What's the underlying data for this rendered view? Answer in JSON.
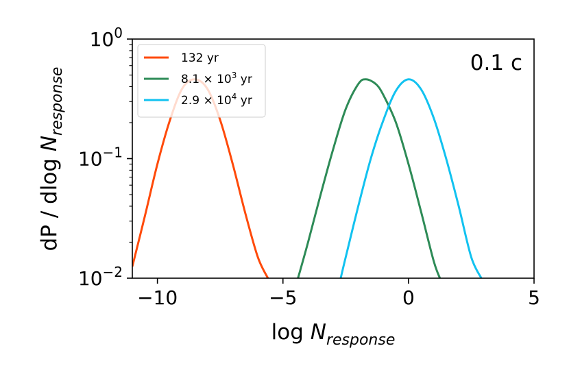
{
  "chart_data": {
    "type": "line",
    "annotation": "0.1 c",
    "xlabel": {
      "main": "log ",
      "italic": "N",
      "sub": "response"
    },
    "ylabel": {
      "main": "dP / dlog ",
      "italic": "N",
      "sub": "response"
    },
    "xlim": [
      -11,
      5
    ],
    "ylim": [
      0.01,
      1
    ],
    "yscale": "log",
    "x_ticks": [
      {
        "value": -10,
        "label": "−10"
      },
      {
        "value": -5,
        "label": "−5"
      },
      {
        "value": 0,
        "label": "0"
      },
      {
        "value": 5,
        "label": "5"
      }
    ],
    "y_ticks": [
      {
        "value": 0.01,
        "base": "10",
        "exp": "−2"
      },
      {
        "value": 0.1,
        "base": "10",
        "exp": "−1"
      },
      {
        "value": 1,
        "base": "10",
        "exp": "0"
      }
    ],
    "legend_position": "top-left",
    "series": [
      {
        "name": "132 yr",
        "legend": {
          "pre": "132 yr",
          "exp": "",
          "post": ""
        },
        "color": "#ff4a0a",
        "x": [
          -11.0,
          -10.5,
          -10.0,
          -9.5,
          -9.0,
          -8.5,
          -8.0,
          -7.5,
          -7.0,
          -6.5,
          -6.0,
          -5.6
        ],
        "y": [
          0.0125,
          0.033,
          0.09,
          0.21,
          0.39,
          0.46,
          0.38,
          0.21,
          0.09,
          0.035,
          0.015,
          0.01
        ]
      },
      {
        "name": "8.1 × 10^3 yr",
        "legend": {
          "pre": "8.1 × 10",
          "exp": "3",
          "post": " yr"
        },
        "color": "#2e8b57",
        "x": [
          -4.4,
          -4.0,
          -3.5,
          -3.0,
          -2.5,
          -2.0,
          -1.7,
          -1.3,
          -1.0,
          -0.5,
          0.0,
          0.5,
          1.0,
          1.25
        ],
        "y": [
          0.01,
          0.02,
          0.05,
          0.12,
          0.26,
          0.42,
          0.46,
          0.42,
          0.34,
          0.2,
          0.09,
          0.036,
          0.014,
          0.01
        ]
      },
      {
        "name": "2.9 × 10^4 yr",
        "legend": {
          "pre": "2.9 × 10",
          "exp": "4",
          "post": " yr"
        },
        "color": "#12c2f0",
        "x": [
          -2.7,
          -2.5,
          -2.0,
          -1.5,
          -1.0,
          -0.5,
          0.0,
          0.5,
          1.0,
          1.5,
          2.0,
          2.5,
          2.9
        ],
        "y": [
          0.01,
          0.015,
          0.04,
          0.1,
          0.21,
          0.37,
          0.46,
          0.38,
          0.22,
          0.1,
          0.04,
          0.015,
          0.01
        ]
      }
    ]
  }
}
